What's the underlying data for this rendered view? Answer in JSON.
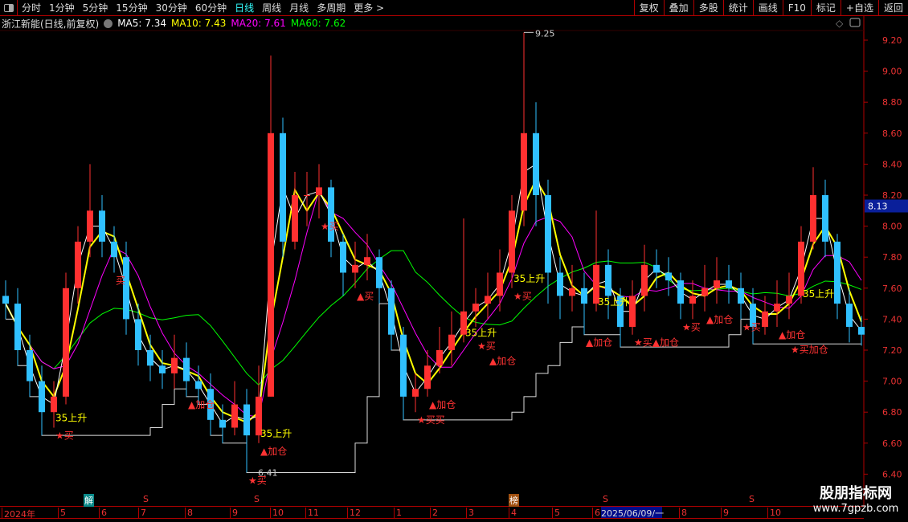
{
  "toolbar": {
    "periods": [
      "分时",
      "1分钟",
      "5分钟",
      "15分钟",
      "30分钟",
      "60分钟",
      "日线",
      "周线",
      "月线",
      "多周期",
      "更多 >"
    ],
    "active": "日线",
    "buttons": [
      "复权",
      "叠加",
      "多股",
      "统计",
      "画线",
      "F10",
      "标记",
      "+自选",
      "返回"
    ]
  },
  "legend": {
    "title": "浙江新能(日线,前复权)",
    "ma5": "MA5: 7.34",
    "ma10": "MA10: 7.43",
    "ma20": "MA20: 7.61",
    "ma60": "MA60: 7.62"
  },
  "colors": {
    "up": "#ff3030",
    "down": "#30c0ff",
    "ma5": "#ffffff",
    "ma10": "#ffff00",
    "ma20": "#ff00ff",
    "ma60": "#00ff00",
    "grid": "#b00000",
    "price_tag": "#0a1f9a"
  },
  "chart_data": {
    "type": "candlestick",
    "ylim": [
      6.4,
      9.3
    ],
    "yticks": [
      "9.20",
      "9.00",
      "8.80",
      "8.60",
      "8.40",
      "8.20",
      "8.00",
      "7.80",
      "7.60",
      "7.40",
      "7.20",
      "7.00",
      "6.80",
      "6.60",
      "6.40"
    ],
    "close": [
      7.5,
      7.2,
      7.0,
      6.8,
      6.9,
      7.6,
      7.9,
      8.1,
      7.9,
      7.8,
      7.4,
      7.2,
      7.1,
      7.05,
      7.15,
      7.0,
      6.95,
      6.75,
      6.7,
      6.85,
      6.65,
      6.9,
      8.6,
      7.9,
      8.2,
      8.2,
      8.25,
      7.9,
      7.7,
      7.75,
      7.8,
      7.6,
      7.3,
      6.9,
      6.95,
      7.1,
      7.2,
      7.3,
      7.45,
      7.5,
      7.55,
      7.7,
      8.1,
      8.6,
      8.2,
      7.7,
      7.55,
      7.6,
      7.5,
      7.75,
      7.55,
      7.35,
      7.55,
      7.75,
      7.7,
      7.65,
      7.5,
      7.55,
      7.6,
      7.65,
      7.6,
      7.5,
      7.35,
      7.45,
      7.5,
      7.55,
      7.9,
      8.2,
      7.9,
      7.5,
      7.35,
      7.3
    ],
    "high": [
      7.65,
      7.6,
      7.3,
      7.1,
      7.0,
      7.7,
      8.0,
      8.4,
      8.2,
      8.0,
      7.9,
      7.5,
      7.3,
      7.2,
      7.3,
      7.25,
      7.1,
      7.05,
      6.85,
      7.0,
      6.95,
      7.1,
      9.1,
      8.7,
      8.35,
      8.35,
      8.4,
      8.3,
      7.95,
      7.9,
      7.95,
      7.85,
      7.65,
      7.35,
      7.05,
      7.2,
      7.35,
      7.45,
      8.05,
      7.6,
      7.7,
      7.85,
      8.2,
      9.25,
      8.8,
      8.3,
      7.8,
      7.75,
      7.7,
      8.1,
      7.85,
      7.6,
      7.65,
      7.88,
      7.85,
      7.8,
      7.7,
      7.65,
      7.75,
      7.8,
      7.75,
      7.7,
      7.6,
      7.55,
      7.65,
      7.7,
      8.0,
      8.38,
      8.3,
      7.95,
      7.6,
      7.42
    ],
    "low": [
      7.4,
      7.1,
      6.9,
      6.65,
      6.7,
      6.85,
      7.5,
      7.8,
      7.8,
      7.7,
      7.3,
      7.1,
      7.0,
      6.95,
      6.95,
      6.9,
      6.85,
      6.65,
      6.6,
      6.65,
      6.41,
      6.6,
      6.9,
      7.8,
      7.85,
      8.0,
      8.05,
      7.8,
      7.55,
      7.6,
      7.65,
      7.5,
      7.2,
      6.75,
      6.8,
      6.9,
      7.05,
      7.1,
      7.25,
      7.35,
      7.4,
      7.45,
      7.6,
      8.0,
      8.0,
      7.5,
      7.4,
      7.45,
      7.3,
      7.45,
      7.4,
      7.22,
      7.3,
      7.45,
      7.6,
      7.55,
      7.4,
      7.4,
      7.45,
      7.5,
      7.5,
      7.4,
      7.24,
      7.3,
      7.35,
      7.4,
      7.5,
      7.85,
      7.8,
      7.4,
      7.25,
      7.23
    ],
    "first_open": 7.55,
    "max_label": "9.25",
    "min_label": "6.41",
    "current_price": "8.13",
    "annotations": [
      {
        "i": 4,
        "text": "★买"
      },
      {
        "i": 4,
        "text": "35上升"
      },
      {
        "i": 9,
        "text": "买"
      },
      {
        "i": 15,
        "text": "▲加仓"
      },
      {
        "i": 20,
        "text": "★买"
      },
      {
        "i": 21,
        "text": "▲加仓"
      },
      {
        "i": 21,
        "text": "35上升"
      },
      {
        "i": 26,
        "text": "★买"
      },
      {
        "i": 29,
        "text": "▲买"
      },
      {
        "i": 34,
        "text": "★买买"
      },
      {
        "i": 35,
        "text": "▲加仓"
      },
      {
        "i": 38,
        "text": "35上升"
      },
      {
        "i": 39,
        "text": "★买"
      },
      {
        "i": 40,
        "text": "▲加仓"
      },
      {
        "i": 42,
        "text": "★买"
      },
      {
        "i": 42,
        "text": "35上升"
      },
      {
        "i": 48,
        "text": "▲加仓"
      },
      {
        "i": 49,
        "text": "35上升"
      },
      {
        "i": 52,
        "text": "★买▲加仓"
      },
      {
        "i": 56,
        "text": "★买"
      },
      {
        "i": 58,
        "text": "▲加仓"
      },
      {
        "i": 61,
        "text": "★买"
      },
      {
        "i": 64,
        "text": "▲加仓"
      },
      {
        "i": 65,
        "text": "★买加仓"
      },
      {
        "i": 66,
        "text": "35上升"
      }
    ],
    "xlabels": [
      "2024年",
      "5",
      "6",
      "7",
      "8",
      "9",
      "10",
      "11",
      "12",
      "1",
      "2",
      "3",
      "4",
      "5",
      "6",
      "8",
      "9",
      "10"
    ],
    "crosshair_date": "2025/06/09/一",
    "markers": [
      "解",
      "S",
      "S",
      "榜",
      "S",
      "S"
    ]
  },
  "watermark": {
    "line1": "股朋指标网",
    "line2": "www.7gpzb.com"
  }
}
